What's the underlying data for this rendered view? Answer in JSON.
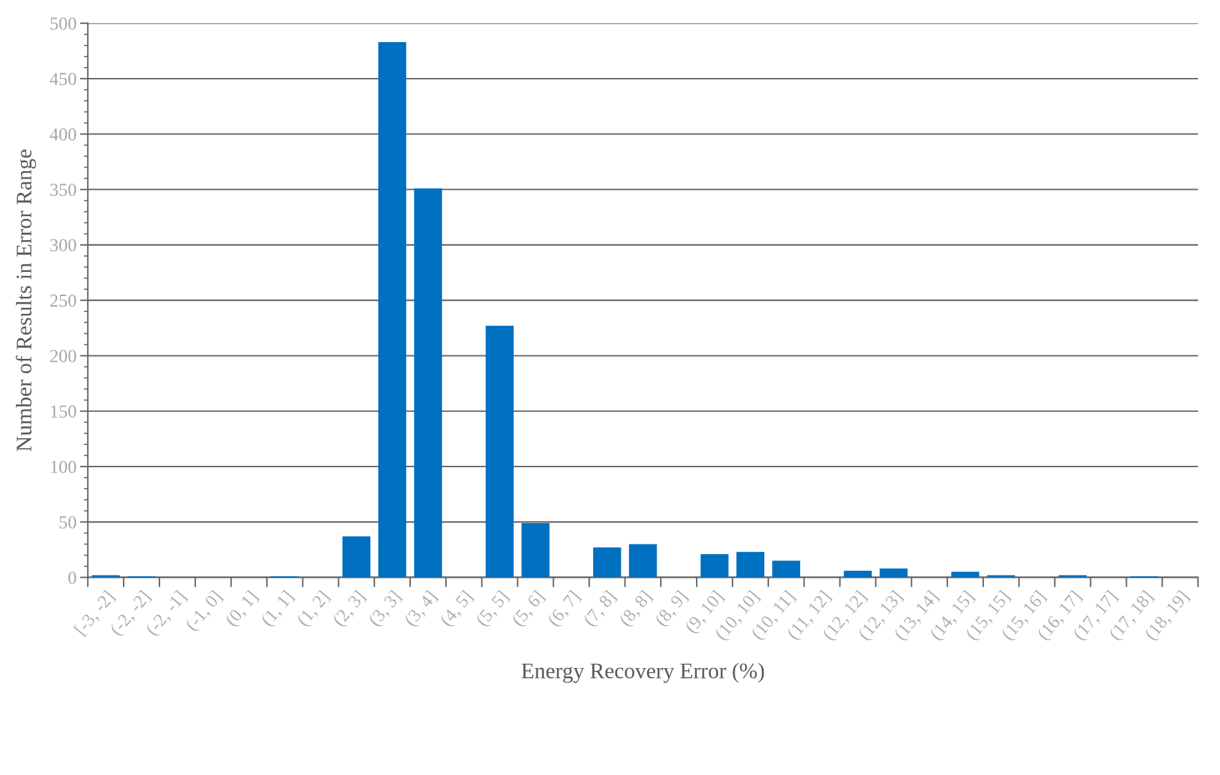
{
  "chart_data": {
    "type": "bar",
    "xlabel": "Energy Recovery Error (%)",
    "ylabel": "Number of Results in Error Range",
    "categories": [
      "[-3, -2]",
      "(-2, -2]",
      "(-2, -1]",
      "(-1, 0]",
      "(0, 1]",
      "(1, 1]",
      "(1, 2]",
      "(2, 3]",
      "(3, 3]",
      "(3, 4]",
      "(4, 5]",
      "(5, 5]",
      "(5, 6]",
      "(6, 7]",
      "(7, 8]",
      "(8, 8]",
      "(8, 9]",
      "(9, 10]",
      "(10, 10]",
      "(10, 11]",
      "(11, 12]",
      "(12, 12]",
      "(12, 13]",
      "(13, 14]",
      "(14, 15]",
      "(15, 15]",
      "(15, 16]",
      "(16, 17]",
      "(17, 17]",
      "(17, 18]",
      "(18, 19]"
    ],
    "values": [
      2,
      1,
      0,
      0,
      0,
      1,
      0,
      37,
      483,
      351,
      0,
      227,
      49,
      0,
      27,
      30,
      0,
      21,
      23,
      15,
      0,
      6,
      8,
      0,
      5,
      2,
      0,
      2,
      0,
      1,
      0
    ],
    "color": "#0070c0",
    "ylim": [
      0,
      500
    ],
    "yticks": [
      0,
      50,
      100,
      150,
      200,
      250,
      300,
      350,
      400,
      450,
      500
    ],
    "grid": "y",
    "legend": false
  }
}
